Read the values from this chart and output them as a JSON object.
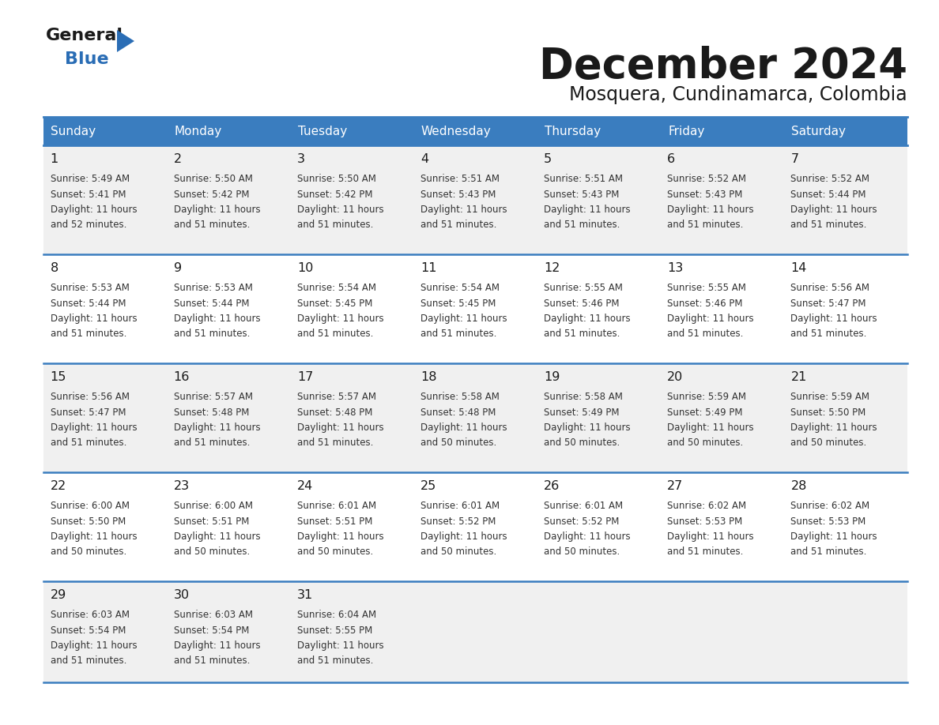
{
  "title": "December 2024",
  "subtitle": "Mosquera, Cundinamarca, Colombia",
  "header_color": "#3a7dbf",
  "header_text_color": "#ffffff",
  "cell_bg_even": "#f0f0f0",
  "cell_bg_odd": "#ffffff",
  "text_color": "#333333",
  "day_headers": [
    "Sunday",
    "Monday",
    "Tuesday",
    "Wednesday",
    "Thursday",
    "Friday",
    "Saturday"
  ],
  "calendar_data": [
    [
      {
        "day": 1,
        "sunrise": "5:49 AM",
        "sunset": "5:41 PM",
        "daylight_hours": 11,
        "daylight_minutes": 52
      },
      {
        "day": 2,
        "sunrise": "5:50 AM",
        "sunset": "5:42 PM",
        "daylight_hours": 11,
        "daylight_minutes": 51
      },
      {
        "day": 3,
        "sunrise": "5:50 AM",
        "sunset": "5:42 PM",
        "daylight_hours": 11,
        "daylight_minutes": 51
      },
      {
        "day": 4,
        "sunrise": "5:51 AM",
        "sunset": "5:43 PM",
        "daylight_hours": 11,
        "daylight_minutes": 51
      },
      {
        "day": 5,
        "sunrise": "5:51 AM",
        "sunset": "5:43 PM",
        "daylight_hours": 11,
        "daylight_minutes": 51
      },
      {
        "day": 6,
        "sunrise": "5:52 AM",
        "sunset": "5:43 PM",
        "daylight_hours": 11,
        "daylight_minutes": 51
      },
      {
        "day": 7,
        "sunrise": "5:52 AM",
        "sunset": "5:44 PM",
        "daylight_hours": 11,
        "daylight_minutes": 51
      }
    ],
    [
      {
        "day": 8,
        "sunrise": "5:53 AM",
        "sunset": "5:44 PM",
        "daylight_hours": 11,
        "daylight_minutes": 51
      },
      {
        "day": 9,
        "sunrise": "5:53 AM",
        "sunset": "5:44 PM",
        "daylight_hours": 11,
        "daylight_minutes": 51
      },
      {
        "day": 10,
        "sunrise": "5:54 AM",
        "sunset": "5:45 PM",
        "daylight_hours": 11,
        "daylight_minutes": 51
      },
      {
        "day": 11,
        "sunrise": "5:54 AM",
        "sunset": "5:45 PM",
        "daylight_hours": 11,
        "daylight_minutes": 51
      },
      {
        "day": 12,
        "sunrise": "5:55 AM",
        "sunset": "5:46 PM",
        "daylight_hours": 11,
        "daylight_minutes": 51
      },
      {
        "day": 13,
        "sunrise": "5:55 AM",
        "sunset": "5:46 PM",
        "daylight_hours": 11,
        "daylight_minutes": 51
      },
      {
        "day": 14,
        "sunrise": "5:56 AM",
        "sunset": "5:47 PM",
        "daylight_hours": 11,
        "daylight_minutes": 51
      }
    ],
    [
      {
        "day": 15,
        "sunrise": "5:56 AM",
        "sunset": "5:47 PM",
        "daylight_hours": 11,
        "daylight_minutes": 51
      },
      {
        "day": 16,
        "sunrise": "5:57 AM",
        "sunset": "5:48 PM",
        "daylight_hours": 11,
        "daylight_minutes": 51
      },
      {
        "day": 17,
        "sunrise": "5:57 AM",
        "sunset": "5:48 PM",
        "daylight_hours": 11,
        "daylight_minutes": 51
      },
      {
        "day": 18,
        "sunrise": "5:58 AM",
        "sunset": "5:48 PM",
        "daylight_hours": 11,
        "daylight_minutes": 50
      },
      {
        "day": 19,
        "sunrise": "5:58 AM",
        "sunset": "5:49 PM",
        "daylight_hours": 11,
        "daylight_minutes": 50
      },
      {
        "day": 20,
        "sunrise": "5:59 AM",
        "sunset": "5:49 PM",
        "daylight_hours": 11,
        "daylight_minutes": 50
      },
      {
        "day": 21,
        "sunrise": "5:59 AM",
        "sunset": "5:50 PM",
        "daylight_hours": 11,
        "daylight_minutes": 50
      }
    ],
    [
      {
        "day": 22,
        "sunrise": "6:00 AM",
        "sunset": "5:50 PM",
        "daylight_hours": 11,
        "daylight_minutes": 50
      },
      {
        "day": 23,
        "sunrise": "6:00 AM",
        "sunset": "5:51 PM",
        "daylight_hours": 11,
        "daylight_minutes": 50
      },
      {
        "day": 24,
        "sunrise": "6:01 AM",
        "sunset": "5:51 PM",
        "daylight_hours": 11,
        "daylight_minutes": 50
      },
      {
        "day": 25,
        "sunrise": "6:01 AM",
        "sunset": "5:52 PM",
        "daylight_hours": 11,
        "daylight_minutes": 50
      },
      {
        "day": 26,
        "sunrise": "6:01 AM",
        "sunset": "5:52 PM",
        "daylight_hours": 11,
        "daylight_minutes": 50
      },
      {
        "day": 27,
        "sunrise": "6:02 AM",
        "sunset": "5:53 PM",
        "daylight_hours": 11,
        "daylight_minutes": 51
      },
      {
        "day": 28,
        "sunrise": "6:02 AM",
        "sunset": "5:53 PM",
        "daylight_hours": 11,
        "daylight_minutes": 51
      }
    ],
    [
      {
        "day": 29,
        "sunrise": "6:03 AM",
        "sunset": "5:54 PM",
        "daylight_hours": 11,
        "daylight_minutes": 51
      },
      {
        "day": 30,
        "sunrise": "6:03 AM",
        "sunset": "5:54 PM",
        "daylight_hours": 11,
        "daylight_minutes": 51
      },
      {
        "day": 31,
        "sunrise": "6:04 AM",
        "sunset": "5:55 PM",
        "daylight_hours": 11,
        "daylight_minutes": 51
      },
      null,
      null,
      null,
      null
    ]
  ],
  "logo_color_general": "#1a1a1a",
  "logo_color_blue": "#2a6db5",
  "logo_triangle_color": "#2a6db5"
}
